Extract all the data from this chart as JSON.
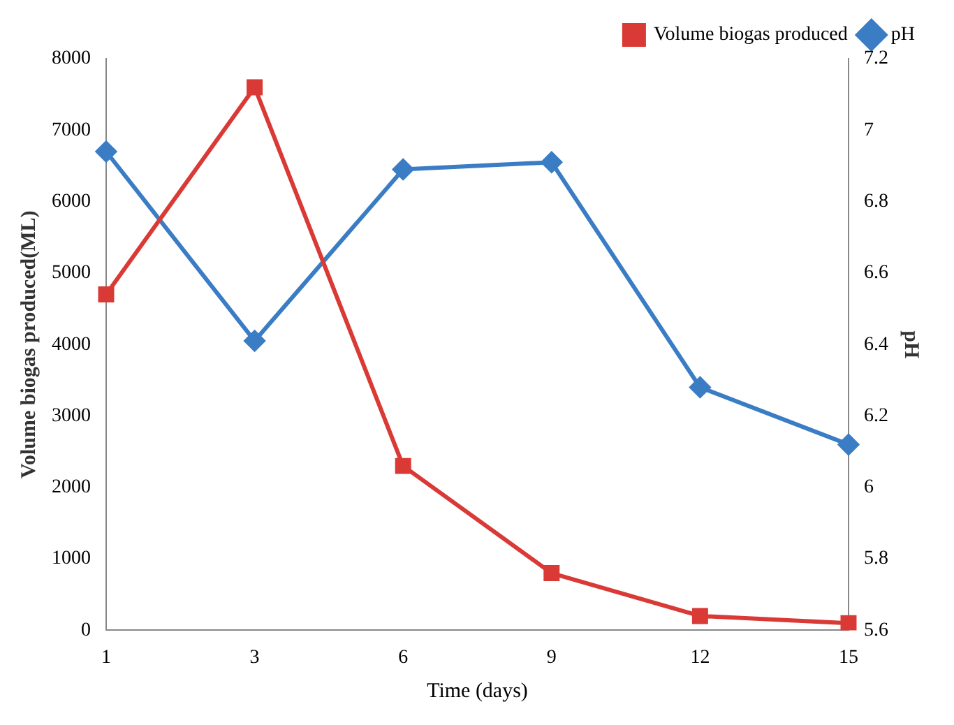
{
  "chart_data": {
    "type": "line",
    "xlabel": "Time (days)",
    "ylabel": "Volume biogas produced(ML)",
    "y2label": "pH",
    "categories": [
      "1",
      "3",
      "6",
      "9",
      "12",
      "15"
    ],
    "series": [
      {
        "name": "Volume biogas produced",
        "color": "#d93a36",
        "marker": "square",
        "values": [
          4700,
          7600,
          2300,
          800,
          200,
          100
        ]
      },
      {
        "name": "pH",
        "color": "#3a7dc4",
        "marker": "diamond",
        "axis": "y2",
        "values": [
          6.94,
          6.41,
          6.89,
          6.91,
          6.28,
          6.12
        ]
      }
    ],
    "ylim": [
      0,
      8000
    ],
    "yticks": [
      0,
      1000,
      2000,
      3000,
      4000,
      5000,
      6000,
      7000,
      8000
    ],
    "y2lim": [
      5.6,
      7.2
    ],
    "y2ticks": [
      5.6,
      5.8,
      6,
      6.2,
      6.4,
      6.6,
      6.8,
      7,
      7.2
    ],
    "grid": false,
    "legend": "top right"
  }
}
